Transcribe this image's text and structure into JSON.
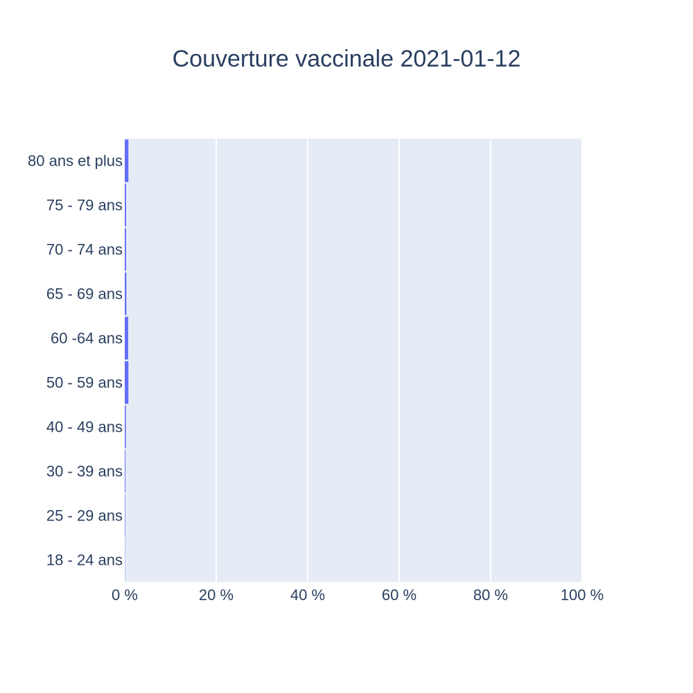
{
  "chart_data": {
    "type": "bar",
    "orientation": "horizontal",
    "title": "Couverture vaccinale 2021-01-12",
    "categories": [
      "18 - 24 ans",
      "25 - 29 ans",
      "30 - 39 ans",
      "40 - 49 ans",
      "50 - 59 ans",
      "60 -64 ans",
      "65 - 69 ans",
      "70 - 74 ans",
      "75 - 79 ans",
      "80 ans et plus"
    ],
    "values": [
      0.05,
      0.1,
      0.15,
      0.25,
      0.8,
      0.75,
      0.35,
      0.3,
      0.3,
      0.8
    ],
    "x_ticks": [
      0,
      20,
      40,
      60,
      80,
      100
    ],
    "x_tick_labels": [
      "0 %",
      "20 %",
      "40 %",
      "60 %",
      "80 %",
      "100 %"
    ],
    "xlim": [
      0,
      100
    ],
    "xlabel": "",
    "ylabel": "",
    "grid": true,
    "colors": {
      "bar": "#636efa",
      "plot_bg": "#e5ecf6",
      "grid": "#ffffff",
      "text": "#2a3f5f"
    }
  }
}
